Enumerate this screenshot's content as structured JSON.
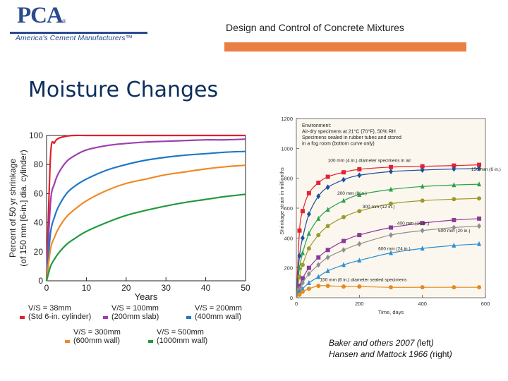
{
  "logo": {
    "mark": "PCA",
    "registered": "®",
    "tagline": "America's Cement Manufacturers™"
  },
  "header": {
    "deck_title": "Design and Control of Concrete Mixtures",
    "accent_color": "#e97f43"
  },
  "slide": {
    "title": "Moisture Changes"
  },
  "caption": {
    "line1_text": "Baker and others 2007 (",
    "line1_side": "left",
    "line1_end": ")",
    "line2_text": "Hansen and Mattock 1966 (",
    "line2_side": "right",
    "line2_end": ")"
  },
  "chart_data": [
    {
      "type": "line",
      "xlabel": "Years",
      "ylabel": "Percent of 50 yr shrinkage (of 150 mm [6-in.] dia. cylinder)",
      "xlim": [
        0,
        50
      ],
      "ylim": [
        0,
        100
      ],
      "xticks": [
        0,
        10,
        20,
        30,
        40,
        50
      ],
      "yticks": [
        0,
        20,
        40,
        60,
        80,
        100
      ],
      "grid": false,
      "legend_position": "bottom",
      "x": [
        0,
        1,
        2,
        3,
        5,
        7,
        10,
        15,
        20,
        25,
        30,
        35,
        40,
        45,
        50
      ],
      "series": [
        {
          "name": "V/S = 38mm (Std 6-in. cylinder)",
          "color": "#e0202a",
          "values": [
            0,
            86,
            95,
            98,
            99.5,
            100,
            100,
            100,
            100,
            100,
            100,
            100,
            100,
            100,
            100
          ]
        },
        {
          "name": "V/S = 100mm (200mm slab)",
          "color": "#9b3fb0",
          "values": [
            0,
            54,
            67,
            74,
            82,
            86,
            90,
            93,
            94.5,
            95.5,
            96,
            96.5,
            97,
            97,
            97.5
          ]
        },
        {
          "name": "V/S = 200mm (400mm wall)",
          "color": "#1f78c8",
          "values": [
            0,
            33,
            44,
            51,
            60,
            65,
            70,
            76,
            80,
            83,
            85,
            86.5,
            87.5,
            88.5,
            89
          ]
        },
        {
          "name": "V/S = 300mm (600mm wall)",
          "color": "#ef8a25",
          "values": [
            0,
            22,
            30,
            36,
            44,
            49,
            55,
            62,
            67,
            70,
            73,
            75,
            77,
            78.5,
            79.5
          ]
        },
        {
          "name": "V/S = 500mm (1000mm wall)",
          "color": "#1f9a3e",
          "values": [
            0,
            10,
            15,
            19,
            25,
            29,
            34,
            40,
            45,
            48.5,
            51.5,
            54,
            56,
            58,
            59.5
          ]
        }
      ]
    },
    {
      "type": "scatter",
      "xlabel": "Time, days",
      "ylabel": "Shrinkage strain in millionths",
      "xlim": [
        0,
        600
      ],
      "ylim": [
        0,
        1200
      ],
      "xticks": [
        0,
        200,
        400,
        600
      ],
      "yticks": [
        0,
        200,
        400,
        600,
        800,
        1000,
        1200
      ],
      "grid": false,
      "annotations": [
        "Environment:",
        "Air-dry specimens at 21°C (70°F), 50% RH",
        "Specimens sealed in rubber tubes and stored",
        "in a fog room (bottom curve only)"
      ],
      "x": [
        0,
        10,
        20,
        40,
        70,
        100,
        150,
        200,
        300,
        400,
        500,
        580
      ],
      "series": [
        {
          "name": "100 mm (4 in.) diameter specimens in air",
          "color": "#e32232",
          "marker": "square",
          "values": [
            0,
            450,
            580,
            700,
            770,
            810,
            840,
            860,
            875,
            880,
            885,
            890
          ]
        },
        {
          "name": "150 mm (6 in.)",
          "color": "#1c4f9c",
          "marker": "diamond",
          "values": [
            0,
            280,
            400,
            560,
            680,
            740,
            790,
            820,
            845,
            855,
            862,
            865
          ]
        },
        {
          "name": "200 mm (8 in.)",
          "color": "#2aa24a",
          "marker": "triangle",
          "values": [
            0,
            200,
            300,
            430,
            530,
            590,
            650,
            690,
            725,
            745,
            755,
            760
          ]
        },
        {
          "name": "300 mm (12 in.)",
          "color": "#9c9a2a",
          "marker": "circle",
          "values": [
            0,
            140,
            220,
            330,
            420,
            480,
            540,
            580,
            630,
            650,
            660,
            665
          ]
        },
        {
          "name": "400 mm (16 in.)",
          "color": "#8a3a9c",
          "marker": "square",
          "values": [
            0,
            80,
            130,
            200,
            270,
            320,
            380,
            420,
            470,
            500,
            520,
            530
          ]
        },
        {
          "name": "500 mm (20 in.)",
          "color": "#8e8e8e",
          "marker": "diamond",
          "values": [
            0,
            60,
            100,
            160,
            220,
            270,
            320,
            360,
            420,
            450,
            470,
            480
          ]
        },
        {
          "name": "600 mm (24 in.)",
          "color": "#2b8fd3",
          "marker": "triangle",
          "values": [
            0,
            40,
            60,
            100,
            140,
            180,
            220,
            250,
            300,
            330,
            350,
            360
          ]
        },
        {
          "name": "150 mm (6 in.) diameter sealed specimens",
          "color": "#e58a1f",
          "marker": "circle",
          "values": [
            0,
            20,
            40,
            60,
            80,
            80,
            75,
            75,
            70,
            70,
            70,
            70
          ]
        }
      ]
    }
  ]
}
